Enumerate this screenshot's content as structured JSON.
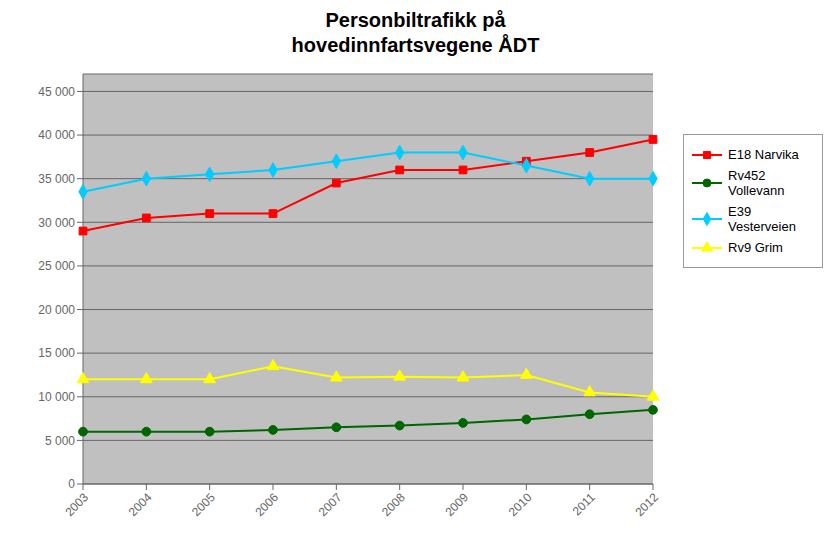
{
  "chart_data": {
    "type": "line",
    "title": "Personbiltrafikk på\nhovedinnfartsvegene ÅDT",
    "categories": [
      "2003",
      "2004",
      "2005",
      "2006",
      "2007",
      "2008",
      "2009",
      "2010",
      "2011",
      "2012"
    ],
    "series": [
      {
        "name": "E18 Narvika",
        "color": "#FF0000",
        "marker": "square",
        "values": [
          29000,
          30500,
          31000,
          31000,
          34500,
          36000,
          36000,
          37000,
          38000,
          39500
        ]
      },
      {
        "name": "Rv452\nVollevann",
        "color": "#006600",
        "marker": "circle",
        "values": [
          6000,
          6000,
          6000,
          6200,
          6500,
          6700,
          7000,
          7400,
          8000,
          8500
        ]
      },
      {
        "name": "E39\nVesterveien",
        "color": "#00CCFF",
        "marker": "diamond",
        "values": [
          33500,
          35000,
          35500,
          36000,
          37000,
          38000,
          38000,
          36500,
          35000,
          35000
        ]
      },
      {
        "name": "Rv9 Grim",
        "color": "#FFFF00",
        "marker": "triangle",
        "values": [
          12000,
          12000,
          12000,
          13500,
          12200,
          12300,
          12200,
          12500,
          10500,
          10000
        ]
      }
    ],
    "ylim": [
      0,
      47000
    ],
    "yticks": [
      0,
      {
        "value": 5000,
        "label": "5 000"
      },
      {
        "value": 10000,
        "label": "10 000"
      },
      {
        "value": 15000,
        "label": "15 000"
      },
      {
        "value": 20000,
        "label": "20 000"
      },
      {
        "value": 25000,
        "label": "25 000"
      },
      {
        "value": 30000,
        "label": "30 000"
      },
      {
        "value": 35000,
        "label": "35 000"
      },
      {
        "value": 40000,
        "label": "40 000"
      },
      {
        "value": 45000,
        "label": "45 000"
      }
    ],
    "grid": true,
    "legend": "right"
  }
}
